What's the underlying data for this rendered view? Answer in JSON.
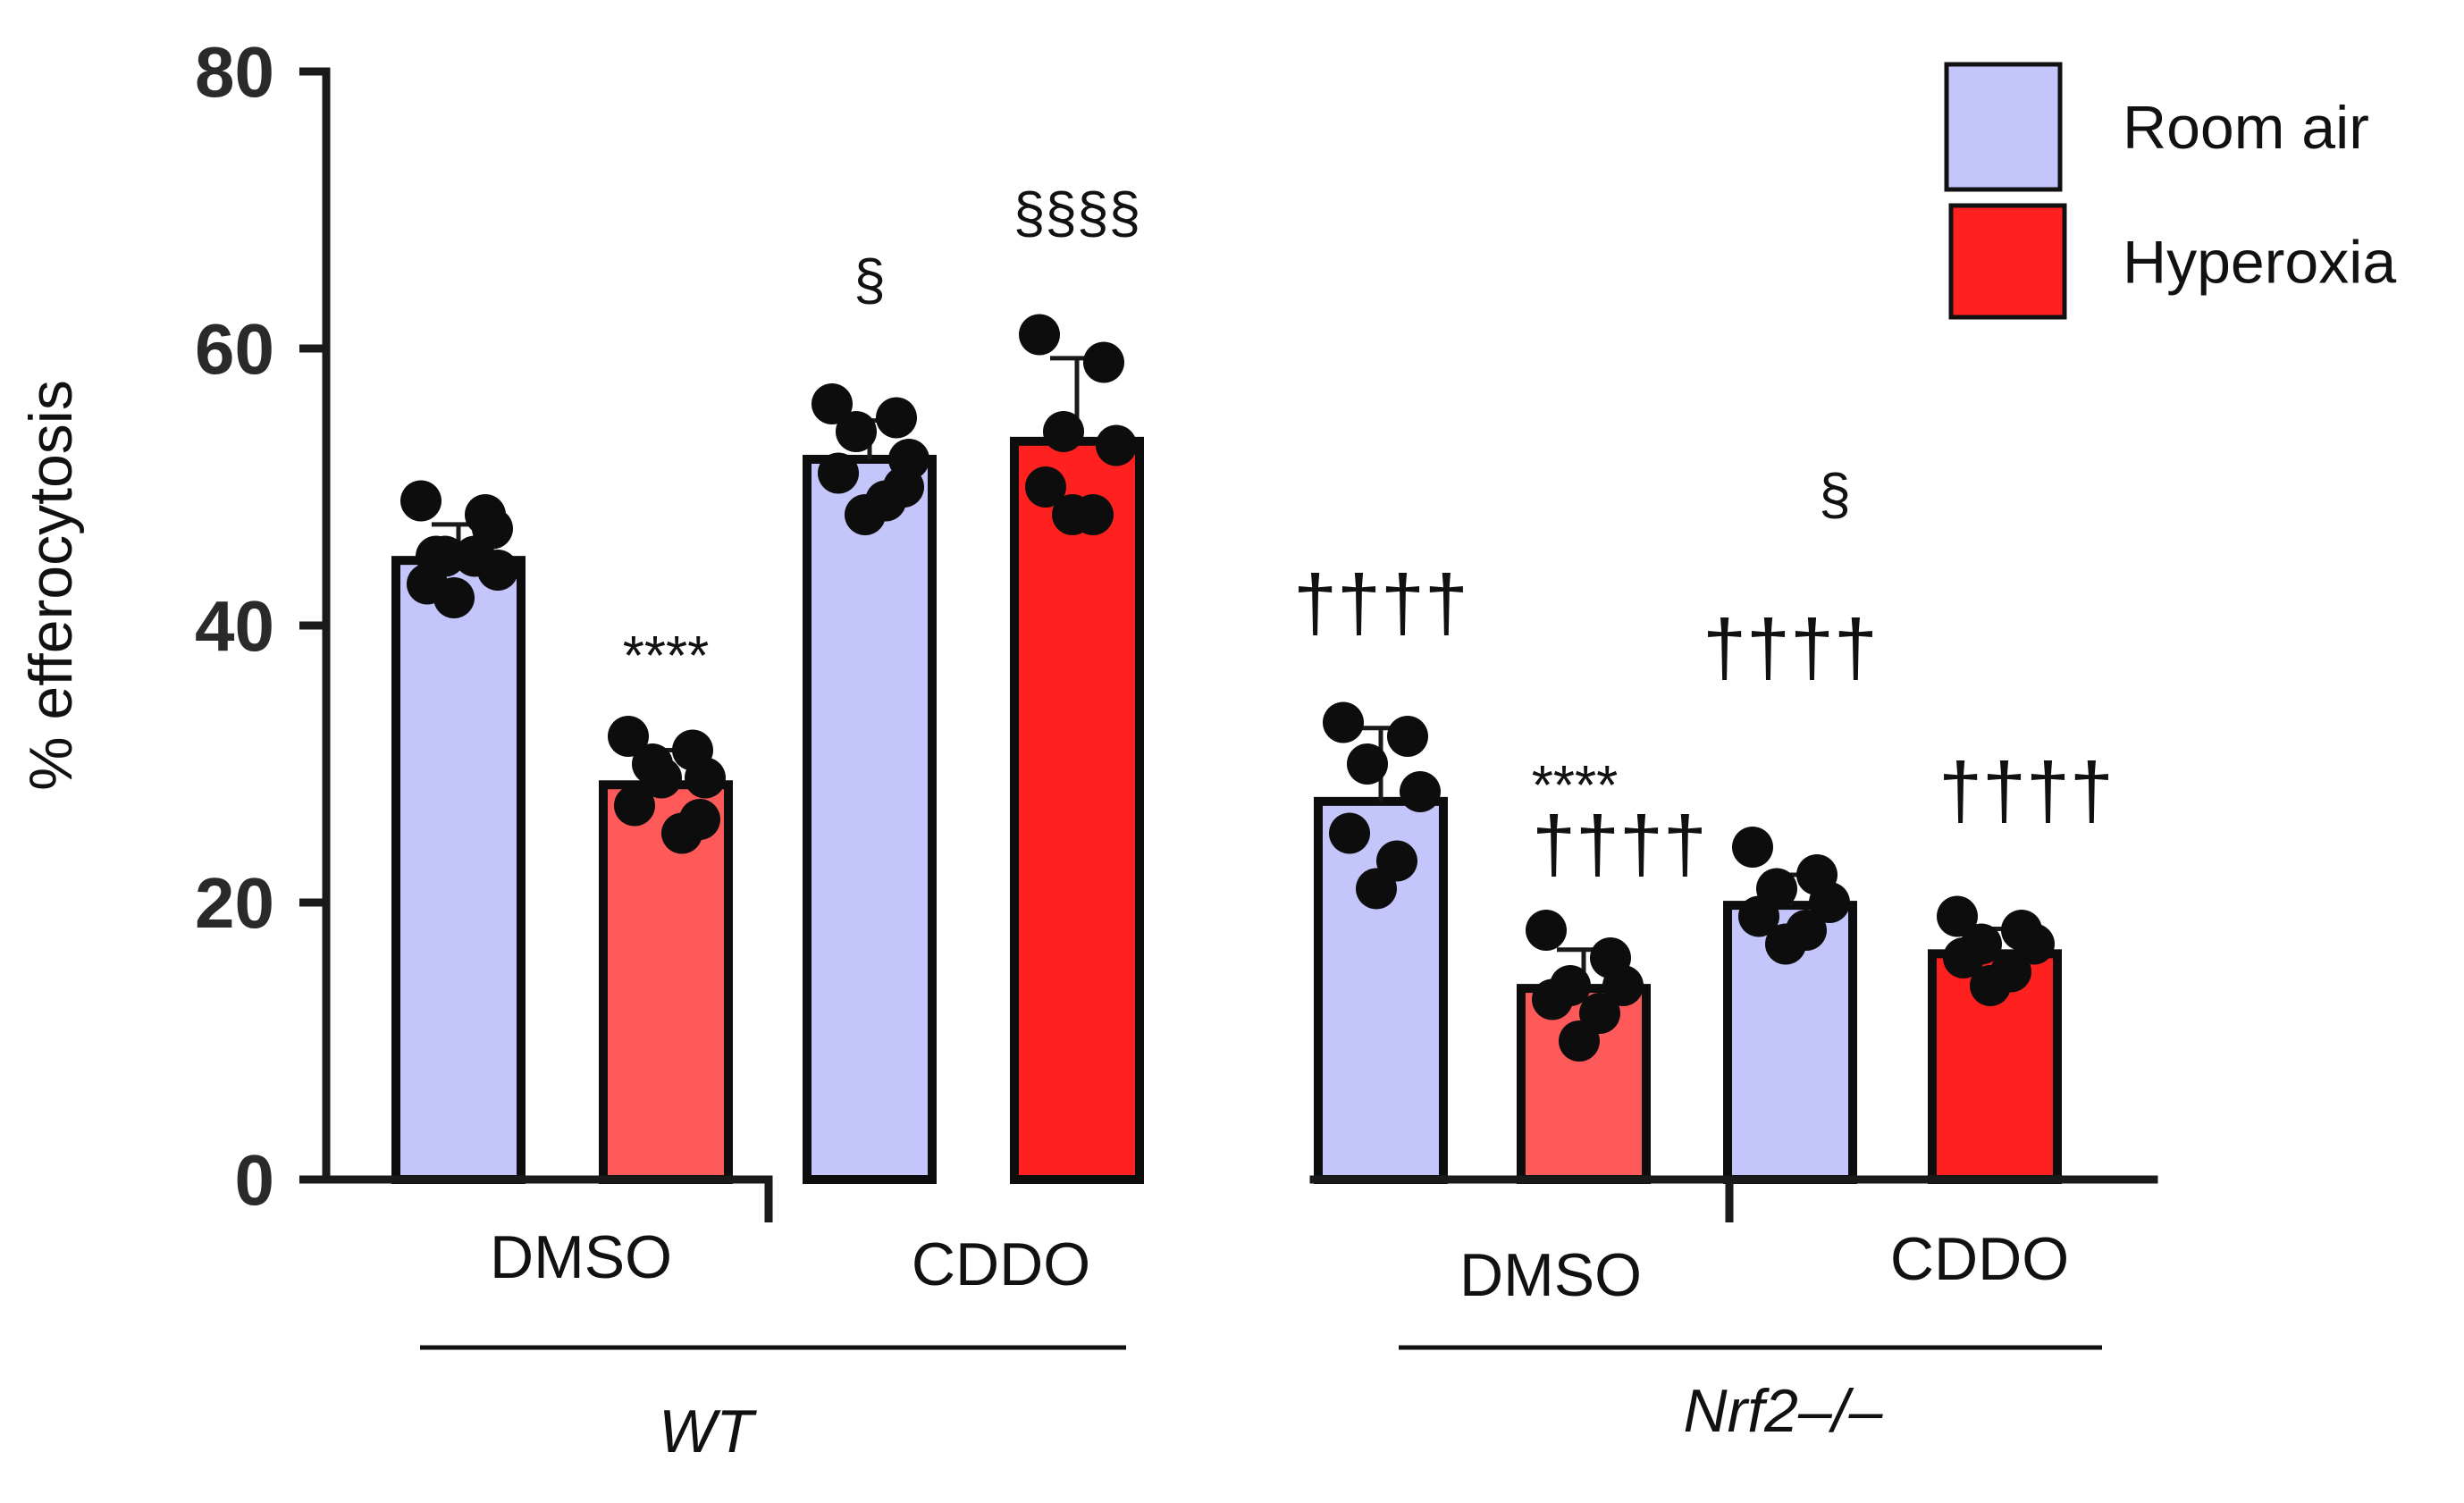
{
  "chart_data": {
    "type": "bar",
    "ylabel": "% efferocytosis",
    "ylim": [
      0,
      80
    ],
    "yticks": [
      0,
      20,
      40,
      60,
      80
    ],
    "legend": {
      "position": "top-right",
      "entries": [
        {
          "name": "Room air",
          "color": "#c4c6fb"
        },
        {
          "name": "Hyperoxia",
          "color": "#ff2020"
        }
      ]
    },
    "groups": [
      {
        "label": "WT",
        "treatments": [
          "DMSO",
          "CDDO"
        ]
      },
      {
        "label": "Nrf2–/–",
        "treatments": [
          "DMSO",
          "CDDO"
        ]
      }
    ],
    "bars": [
      {
        "group": "WT",
        "treatment": "DMSO",
        "condition": "Room air",
        "mean": 44.7,
        "sd": 2.6,
        "color": "#c4c6fb",
        "points": [
          49,
          48,
          45,
          44,
          43,
          45,
          42,
          47,
          45
        ],
        "annotation": []
      },
      {
        "group": "WT",
        "treatment": "DMSO",
        "condition": "Hyperoxia",
        "mean": 28.5,
        "sd": 2.5,
        "color": "#ff5a5a",
        "points": [
          32,
          31,
          30,
          29,
          27,
          25,
          29,
          26
        ],
        "annotation": [
          "****"
        ]
      },
      {
        "group": "WT",
        "treatment": "CDDO",
        "condition": "Room air",
        "mean": 52.0,
        "sd": 2.8,
        "color": "#c4c6fb",
        "points": [
          56,
          55,
          54,
          52,
          51,
          49,
          48,
          50
        ],
        "annotation": [
          "§"
        ]
      },
      {
        "group": "WT",
        "treatment": "CDDO",
        "condition": "Hyperoxia",
        "mean": 53.3,
        "sd": 6.0,
        "color": "#ff2020",
        "points": [
          61,
          59,
          54,
          53,
          50,
          48,
          48
        ],
        "annotation": [
          "§§§§"
        ]
      },
      {
        "group": "Nrf2–/–",
        "treatment": "DMSO",
        "condition": "Room air",
        "mean": 27.3,
        "sd": 5.3,
        "color": "#c4c6fb",
        "points": [
          33,
          32,
          30,
          28,
          25,
          23,
          21
        ],
        "annotation": [
          "††††"
        ]
      },
      {
        "group": "Nrf2–/–",
        "treatment": "DMSO",
        "condition": "Hyperoxia",
        "mean": 13.8,
        "sd": 2.8,
        "color": "#ff5a5a",
        "points": [
          18,
          16,
          14,
          14,
          13,
          12,
          10
        ],
        "annotation": [
          "****",
          "††††"
        ]
      },
      {
        "group": "Nrf2–/–",
        "treatment": "CDDO",
        "condition": "Room air",
        "mean": 19.8,
        "sd": 2.2,
        "color": "#c4c6fb",
        "points": [
          24,
          22,
          21,
          20,
          19,
          18,
          17
        ],
        "annotation": [
          "§",
          "††††"
        ]
      },
      {
        "group": "Nrf2–/–",
        "treatment": "CDDO",
        "condition": "Hyperoxia",
        "mean": 16.3,
        "sd": 1.8,
        "color": "#ff2020",
        "points": [
          19,
          18,
          17,
          17,
          16,
          15,
          14
        ],
        "annotation": [
          "††††"
        ]
      }
    ]
  }
}
